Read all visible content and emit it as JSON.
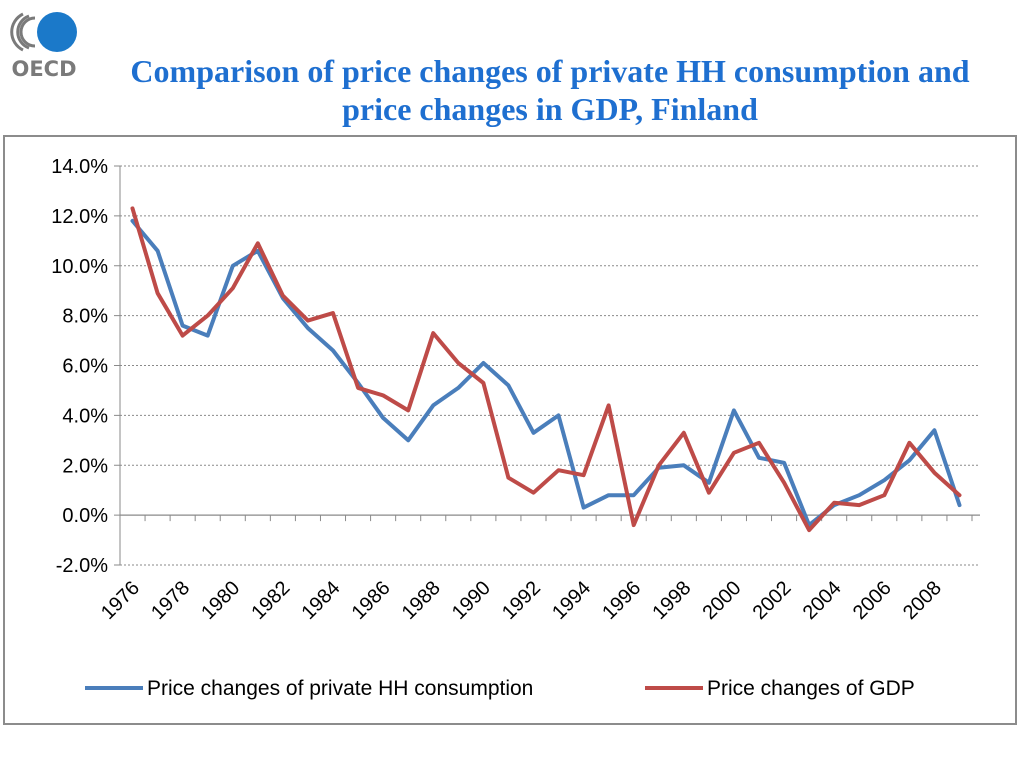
{
  "logo": {
    "text": "OECD",
    "icon": "oecd-logo-icon",
    "colors": {
      "circle": "#1b79c9",
      "arcs": "#7a7a7a",
      "text": "#7a7a7a"
    }
  },
  "title": "Comparison of price changes of private HH consumption and price changes in GDP, Finland",
  "chart_data": {
    "type": "line",
    "title": "Comparison of price changes of private HH consumption and price changes in GDP, Finland",
    "xlabel": "",
    "ylabel": "",
    "x": [
      1976,
      1977,
      1978,
      1979,
      1980,
      1981,
      1982,
      1983,
      1984,
      1985,
      1986,
      1987,
      1988,
      1989,
      1990,
      1991,
      1992,
      1993,
      1994,
      1995,
      1996,
      1997,
      1998,
      1999,
      2000,
      2001,
      2002,
      2003,
      2004,
      2005,
      2006,
      2007,
      2008,
      2009
    ],
    "x_tick_labels": [
      "1976",
      "1978",
      "1980",
      "1982",
      "1984",
      "1986",
      "1988",
      "1990",
      "1992",
      "1994",
      "1996",
      "1998",
      "2000",
      "2002",
      "2004",
      "2006",
      "2008"
    ],
    "y_tick_labels": [
      "14.0%",
      "12.0%",
      "10.0%",
      "8.0%",
      "6.0%",
      "4.0%",
      "2.0%",
      "0.0%",
      "-2.0%"
    ],
    "ylim": [
      -2.0,
      14.0
    ],
    "y_unit": "%",
    "grid": true,
    "legend_position": "bottom",
    "series": [
      {
        "name": "Price changes of private HH consumption",
        "color": "#4a7ebb",
        "values": [
          11.8,
          10.6,
          7.6,
          7.2,
          10.0,
          10.6,
          8.7,
          7.5,
          6.6,
          5.3,
          3.9,
          3.0,
          4.4,
          5.1,
          6.1,
          5.2,
          3.3,
          4.0,
          0.3,
          0.8,
          0.8,
          1.9,
          2.0,
          1.3,
          4.2,
          2.3,
          2.1,
          -0.4,
          0.4,
          0.8,
          1.4,
          2.2,
          3.4,
          0.4
        ]
      },
      {
        "name": "Price changes of GDP",
        "color": "#be4b48",
        "values": [
          12.3,
          8.9,
          7.2,
          8.0,
          9.1,
          10.9,
          8.8,
          7.8,
          8.1,
          5.1,
          4.8,
          4.2,
          7.3,
          6.1,
          5.3,
          1.5,
          0.9,
          1.8,
          1.6,
          4.4,
          -0.4,
          2.0,
          3.3,
          0.9,
          2.5,
          2.9,
          1.3,
          -0.6,
          0.5,
          0.4,
          0.8,
          2.9,
          1.7,
          0.8
        ]
      }
    ]
  }
}
